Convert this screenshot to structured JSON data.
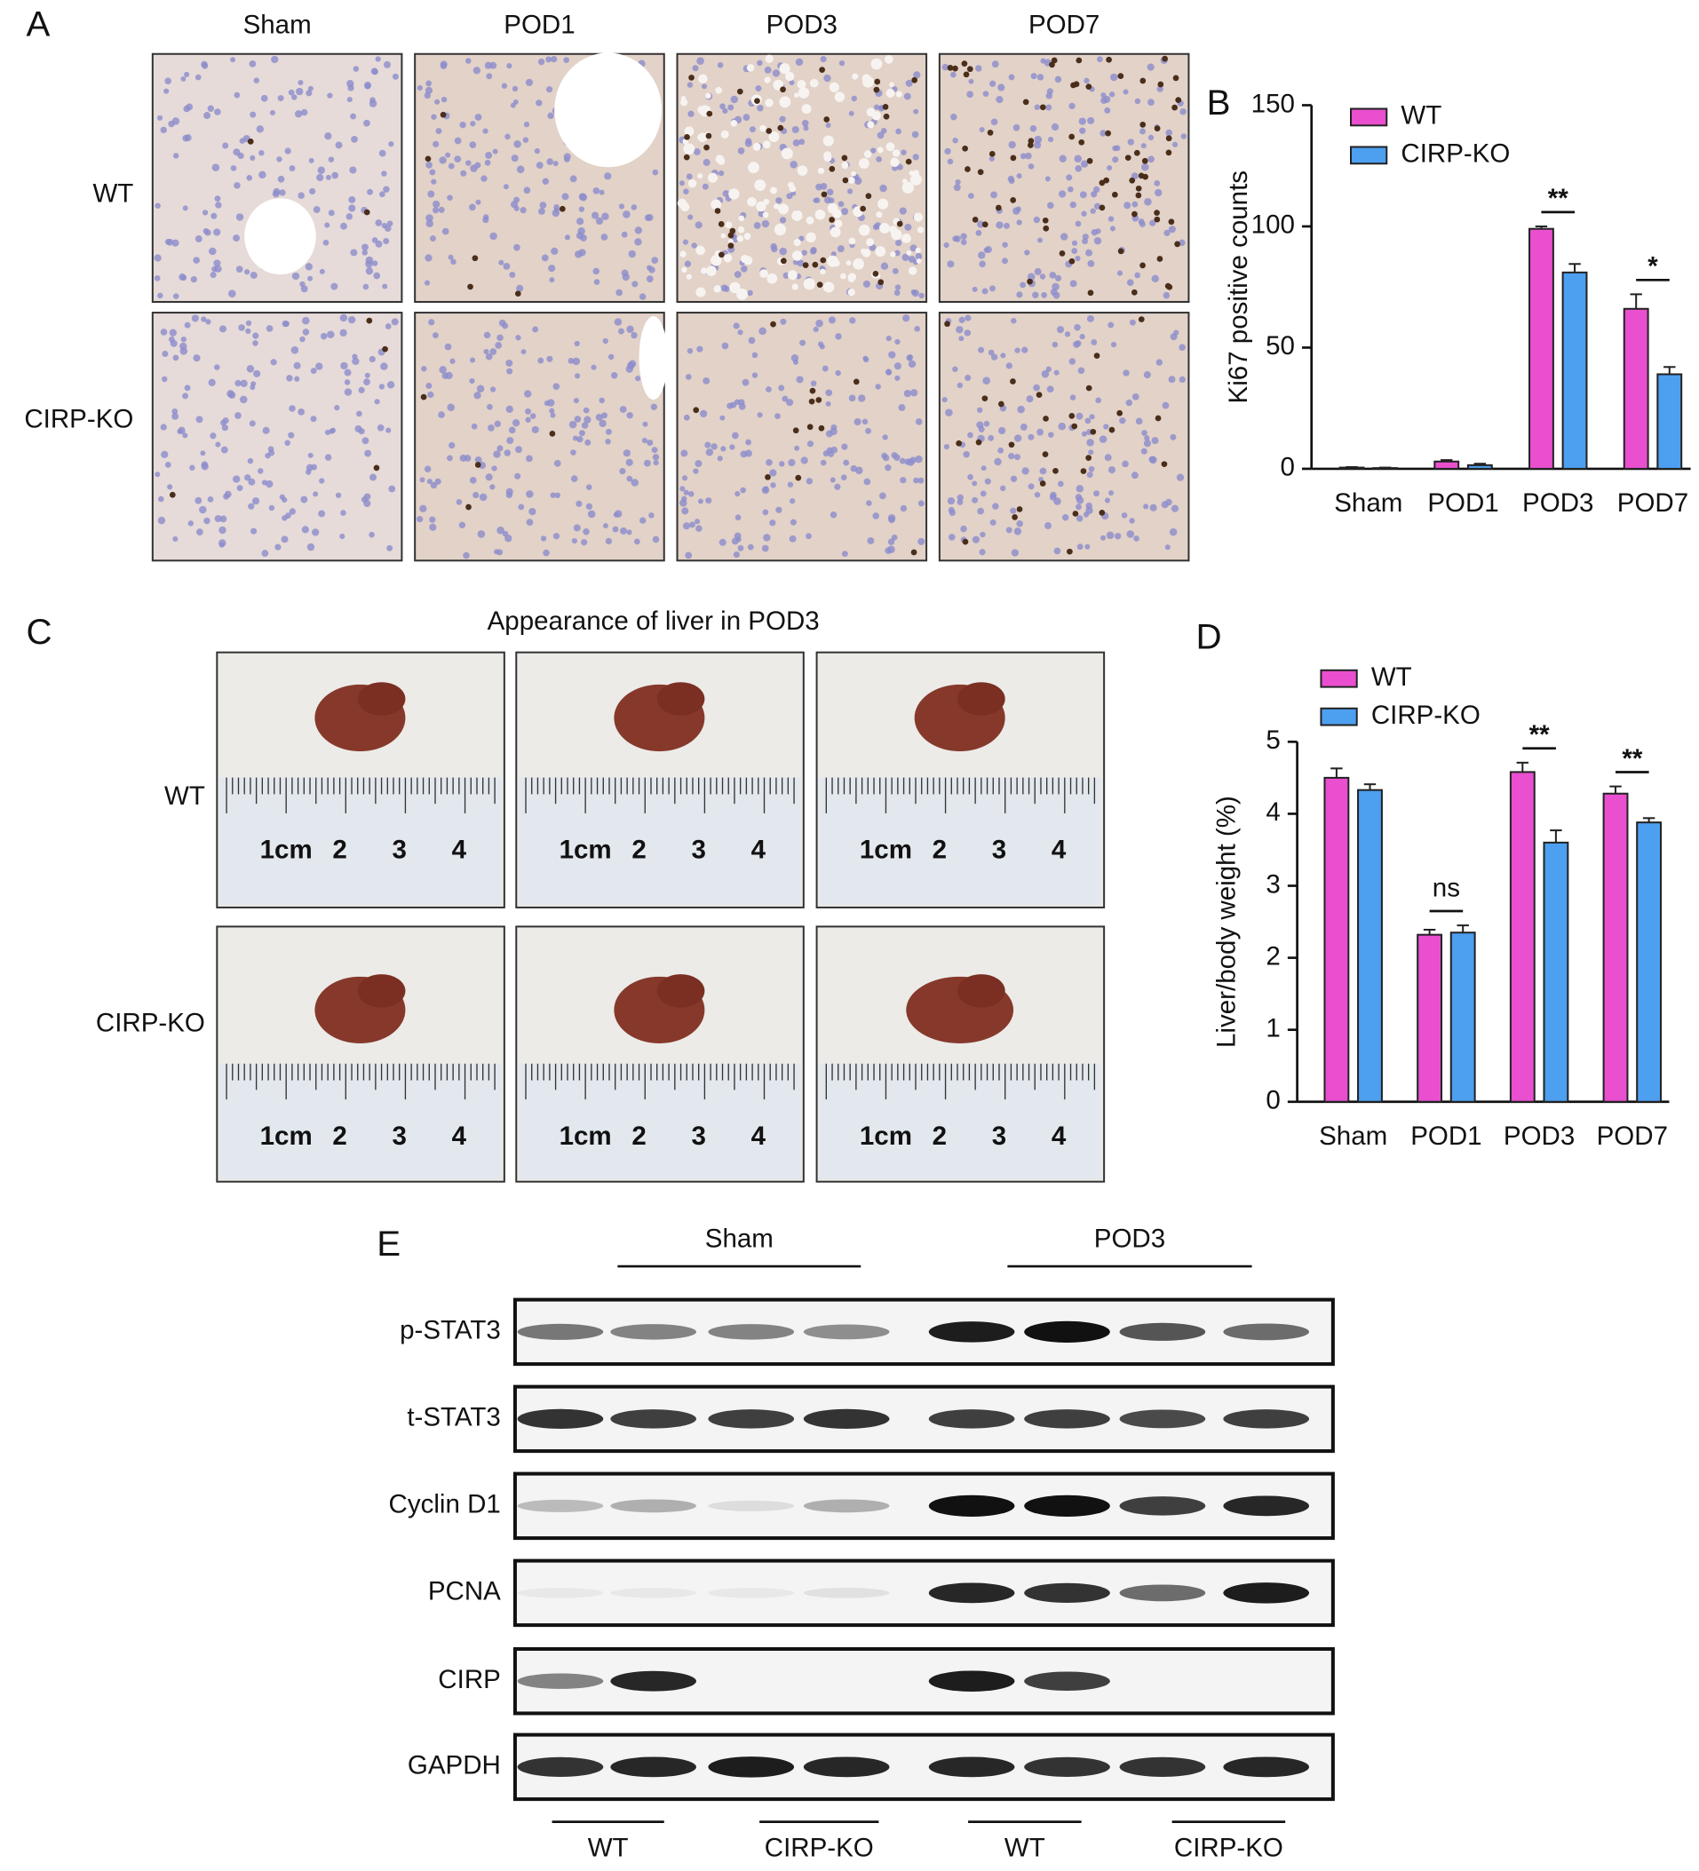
{
  "panel_labels": [
    "A",
    "B",
    "C",
    "D",
    "E"
  ],
  "panel_a": {
    "columns": [
      "Sham",
      "POD1",
      "POD3",
      "POD7"
    ],
    "rows": [
      "WT",
      "CIRP-KO"
    ]
  },
  "panel_c": {
    "title": "Appearance of liver in POD3",
    "rows": [
      "WT",
      "CIRP-KO"
    ],
    "ruler_labels": [
      "1cm",
      "2",
      "3",
      "4"
    ]
  },
  "panel_e": {
    "groups": [
      "Sham",
      "POD3"
    ],
    "proteins": [
      "p-STAT3",
      "t-STAT3",
      "Cyclin D1",
      "PCNA",
      "CIRP",
      "GAPDH"
    ],
    "genotypes": [
      "WT",
      "CIRP-KO",
      "WT",
      "CIRP-KO"
    ]
  },
  "chart_data": [
    {
      "type": "bar",
      "y_label": "Ki67 positive counts",
      "categories": [
        "Sham",
        "POD1",
        "POD3",
        "POD7"
      ],
      "series": [
        {
          "name": "WT",
          "color": "#e94fcf",
          "values": [
            0.5,
            3,
            99,
            66
          ],
          "errors": [
            0.2,
            0.6,
            1,
            6
          ]
        },
        {
          "name": "CIRP-KO",
          "color": "#4d9ff0",
          "values": [
            0.3,
            1.5,
            81,
            39
          ],
          "errors": [
            0.2,
            0.6,
            3.5,
            3
          ]
        }
      ],
      "ylim": [
        0,
        150
      ],
      "yticks": [
        0,
        50,
        100,
        150
      ],
      "legend": "upper left",
      "annotations": [
        {
          "label": "**",
          "category": "POD3"
        },
        {
          "label": "*",
          "category": "POD7"
        }
      ]
    },
    {
      "type": "bar",
      "y_label": "Liver/body weight (%)",
      "categories": [
        "Sham",
        "POD1",
        "POD3",
        "POD7"
      ],
      "series": [
        {
          "name": "WT",
          "color": "#e94fcf",
          "values": [
            4.5,
            2.32,
            4.58,
            4.28
          ],
          "errors": [
            0.13,
            0.07,
            0.13,
            0.1
          ]
        },
        {
          "name": "CIRP-KO",
          "color": "#4d9ff0",
          "values": [
            4.33,
            2.35,
            3.6,
            3.88
          ],
          "errors": [
            0.08,
            0.1,
            0.17,
            0.06
          ]
        }
      ],
      "ylim": [
        0,
        5
      ],
      "yticks": [
        0,
        1,
        2,
        3,
        4,
        5
      ],
      "legend": "upper left",
      "annotations": [
        {
          "label": "ns",
          "category": "POD1"
        },
        {
          "label": "**",
          "category": "POD3"
        },
        {
          "label": "**",
          "category": "POD7"
        }
      ]
    }
  ]
}
